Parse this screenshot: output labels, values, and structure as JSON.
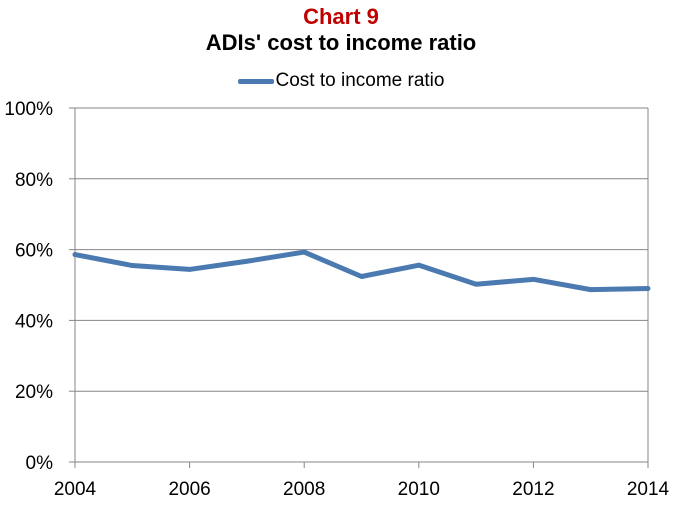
{
  "chart_data": {
    "type": "line",
    "title": "Chart 9",
    "subtitle": "ADIs' cost to income ratio",
    "xlabel": "",
    "ylabel": "",
    "x": [
      2004,
      2005,
      2006,
      2007,
      2008,
      2009,
      2010,
      2011,
      2012,
      2013,
      2014
    ],
    "xticks": [
      "2004",
      "2006",
      "2008",
      "2010",
      "2012",
      "2014"
    ],
    "xlim": [
      2004,
      2014
    ],
    "ylim": [
      0,
      100
    ],
    "yticks": [
      "0%",
      "20%",
      "40%",
      "60%",
      "80%",
      "100%"
    ],
    "grid": true,
    "legend_position": "top",
    "series": [
      {
        "name": "Cost to income ratio",
        "color": "#4a7ab0",
        "values": [
          58.6,
          55.5,
          54.4,
          56.7,
          59.3,
          52.4,
          55.6,
          50.2,
          51.6,
          48.7,
          49.0
        ]
      }
    ]
  }
}
